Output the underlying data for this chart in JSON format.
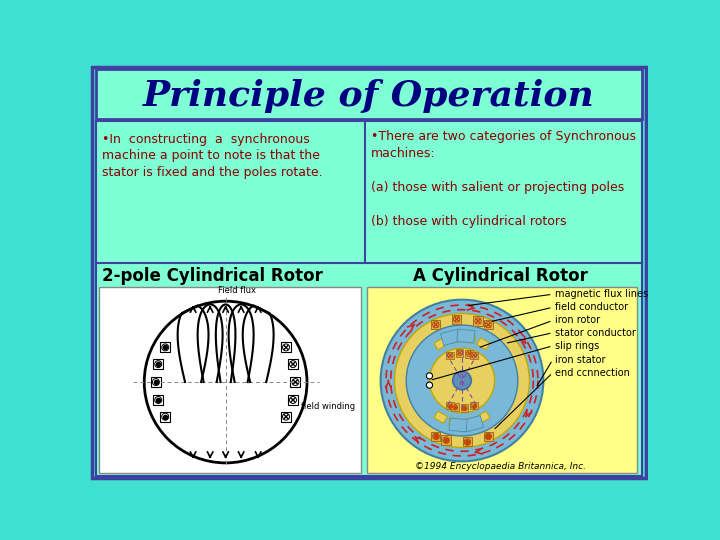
{
  "bg_color": "#40e0d0",
  "title_text": "Principle of Operation",
  "title_color": "#000080",
  "title_bg": "#7fffd4",
  "title_border": "#4040c0",
  "title_fontsize": 26,
  "body_bg": "#7fffd4",
  "left_text_lines": [
    "•In  constructing  a  synchronous",
    "machine a point to note is that the",
    "stator is fixed and the poles rotate."
  ],
  "right_text_lines": [
    "•There are two categories of Synchronous",
    "machines:",
    "",
    "(a) those with salient or projecting poles",
    "",
    "(b) those with cylindrical rotors"
  ],
  "left_label": "2-pole Cylindrical Rotor",
  "right_label": "A Cylindrical Rotor",
  "text_color_dark": "#8b0000",
  "label_color": "#000000",
  "left_img_bg": "#ffffff",
  "right_img_bg": "#ffff88",
  "divider_color": "#4040a0",
  "right_labels": [
    "magnetic flux lines",
    "field conductor",
    "iron rotor",
    "stator conductor",
    "slip rings",
    "iron stator",
    "end ccnnection"
  ],
  "copyright_text": "©1994 Encyclopaedia Britannica, Inc."
}
